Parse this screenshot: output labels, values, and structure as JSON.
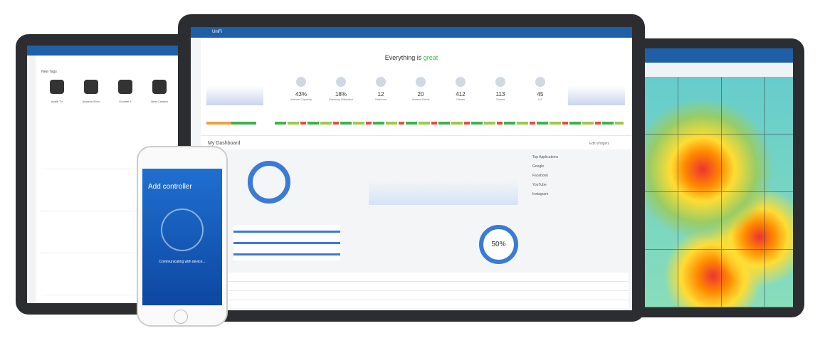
{
  "center": {
    "brand": "UniFi",
    "status_prefix": "Everything is",
    "status_word": "great",
    "stats": [
      {
        "value": "43%",
        "label": "Internet Capacity"
      },
      {
        "value": "18%",
        "label": "Gateway Utilization"
      },
      {
        "value": "12",
        "label": "Switches"
      },
      {
        "value": "20",
        "label": "Access Points"
      },
      {
        "value": "412",
        "label": "Clients"
      },
      {
        "value": "113",
        "label": "Guests"
      },
      {
        "value": "45",
        "label": "IoT"
      }
    ],
    "dashboard_title": "My Dashboard",
    "edit": "Edit Widgets",
    "top_apps_title": "Top Applications",
    "apps": [
      "Google",
      "Facebook",
      "YouTube",
      "Instagram"
    ],
    "donut": "50%"
  },
  "phone": {
    "title": "Add controller",
    "status": "Communicating with device..."
  },
  "left_tablet": {
    "section": "New Tags",
    "devices": [
      "Apple TV",
      "Amazon Echo",
      "Ecobee 3",
      "Nest Camera"
    ]
  }
}
